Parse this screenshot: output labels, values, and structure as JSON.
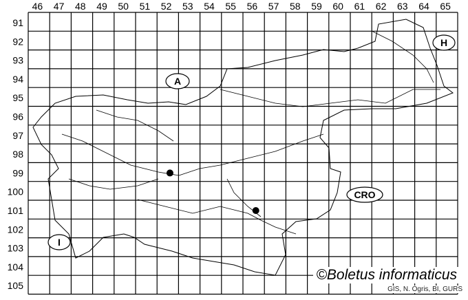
{
  "map": {
    "columns": [
      "46",
      "47",
      "48",
      "49",
      "50",
      "51",
      "52",
      "53",
      "54",
      "55",
      "56",
      "57",
      "58",
      "59",
      "60",
      "61",
      "62",
      "63",
      "64",
      "65"
    ],
    "rows": [
      "91",
      "92",
      "93",
      "94",
      "95",
      "96",
      "97",
      "98",
      "99",
      "100",
      "101",
      "102",
      "103",
      "104",
      "105"
    ],
    "country_labels": [
      {
        "code": "A"
      },
      {
        "code": "H"
      },
      {
        "code": "CRO"
      },
      {
        "code": "I"
      }
    ],
    "records": [
      {
        "column": "52",
        "row": "99"
      },
      {
        "column": "56",
        "row": "101"
      }
    ],
    "record_color": "#000000"
  },
  "credit": "©Boletus informaticus",
  "source": "GIS, N. Ogris, BI, GURS"
}
